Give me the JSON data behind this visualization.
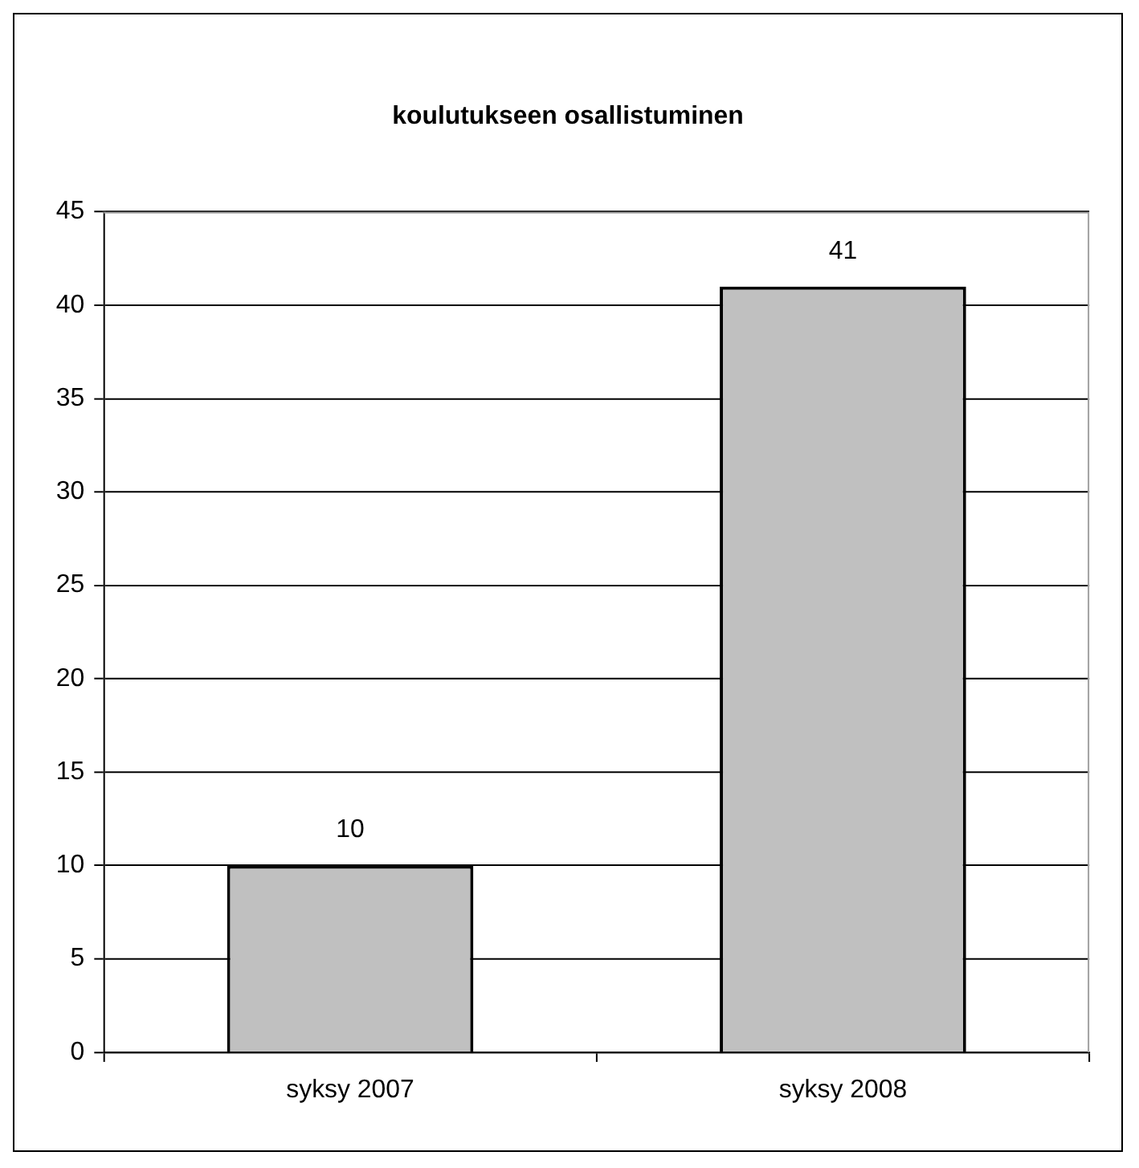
{
  "chart_data": {
    "type": "bar",
    "title": "koulutukseen osallistuminen",
    "categories": [
      "syksy 2007",
      "syksy 2008"
    ],
    "values": [
      10,
      41
    ],
    "color": "#c0c0c0",
    "ylim": [
      0,
      45
    ],
    "yticks": [
      0,
      5,
      10,
      15,
      20,
      25,
      30,
      35,
      40,
      45
    ],
    "grid": "y",
    "legend": false,
    "data_labels": true
  }
}
